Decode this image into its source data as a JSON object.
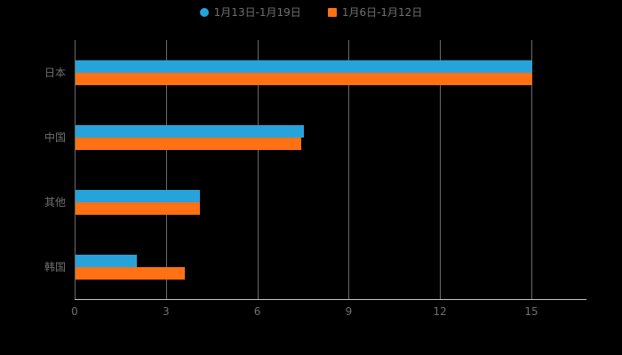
{
  "chart": {
    "background": "#000000",
    "text_color": "#6f6f6f",
    "gridline_color": "rgba(255,255,255,0.42)",
    "axis_line_color": "#c8c8c8"
  },
  "chart_data": {
    "type": "bar",
    "orientation": "horizontal",
    "title": "",
    "xlabel": "",
    "ylabel": "",
    "categories": [
      "日本",
      "中国",
      "其他",
      "韩国"
    ],
    "series": [
      {
        "name": "1月13日-1月19日",
        "color": "#27A3DC",
        "marker": "circle",
        "values": [
          15,
          7.5,
          4.1,
          2
        ]
      },
      {
        "name": "1月6日-1月12日",
        "color": "#FF7112",
        "marker": "square",
        "values": [
          15,
          7.4,
          4.1,
          3.6
        ]
      }
    ],
    "xlim": [
      0,
      15
    ],
    "xticks": [
      0,
      3,
      6,
      9,
      12,
      15
    ],
    "grid": true,
    "legend_position": "top"
  }
}
